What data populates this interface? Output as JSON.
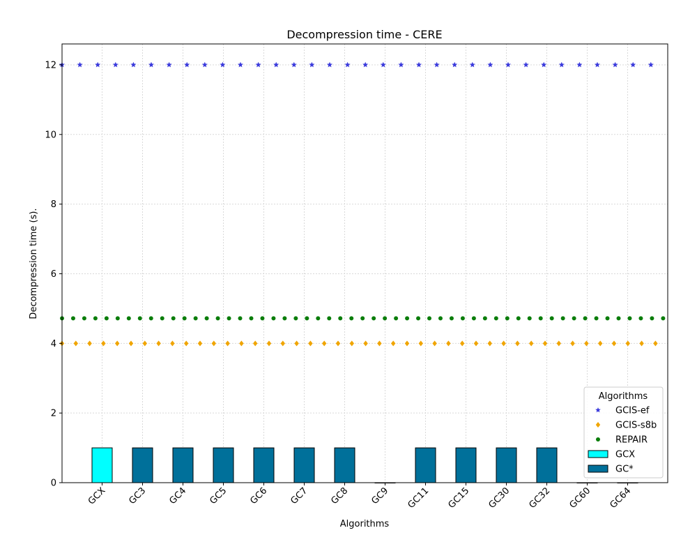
{
  "chart_data": {
    "type": "bar",
    "title": "Decompression time -  CERE",
    "xlabel": "Algorithms",
    "ylabel": "Decompression time (s).",
    "ylim": [
      0,
      12.6
    ],
    "yticks": [
      0,
      2,
      4,
      6,
      8,
      10,
      12
    ],
    "categories": [
      "GCX",
      "GC3",
      "GC4",
      "GC5",
      "GC6",
      "GC7",
      "GC8",
      "GC9",
      "GC11",
      "GC15",
      "GC30",
      "GC32",
      "GC60",
      "GC64"
    ],
    "bars": {
      "values": [
        1,
        1,
        1,
        1,
        1,
        1,
        1,
        0,
        1,
        1,
        1,
        1,
        0,
        0
      ],
      "series": [
        "GCX",
        "GC*",
        "GC*",
        "GC*",
        "GC*",
        "GC*",
        "GC*",
        "GC*",
        "GC*",
        "GC*",
        "GC*",
        "GC*",
        "GC*",
        "GC*"
      ]
    },
    "reference_lines": [
      {
        "name": "GCIS-ef",
        "value": 12,
        "marker": "star",
        "color": "#3b3bdc"
      },
      {
        "name": "GCIS-s8b",
        "value": 4,
        "marker": "diamond",
        "color": "#f0a500"
      },
      {
        "name": "REPAIR",
        "value": 4.72,
        "marker": "circle",
        "color": "#0a7d0a"
      }
    ],
    "legend": {
      "title": "Algorithms",
      "placement": "bottom-right",
      "entries": [
        {
          "label": "GCIS-ef",
          "kind": "star",
          "color": "#3b3bdc"
        },
        {
          "label": "GCIS-s8b",
          "kind": "diamond",
          "color": "#f0a500"
        },
        {
          "label": "REPAIR",
          "kind": "circle",
          "color": "#0a7d0a"
        },
        {
          "label": "GCX",
          "kind": "bar",
          "color": "#00ffff"
        },
        {
          "label": "GC*",
          "kind": "bar",
          "color": "#00709a"
        }
      ]
    },
    "colors": {
      "GCX": "#00ffff",
      "GC*": "#00709a"
    },
    "grid": true
  }
}
